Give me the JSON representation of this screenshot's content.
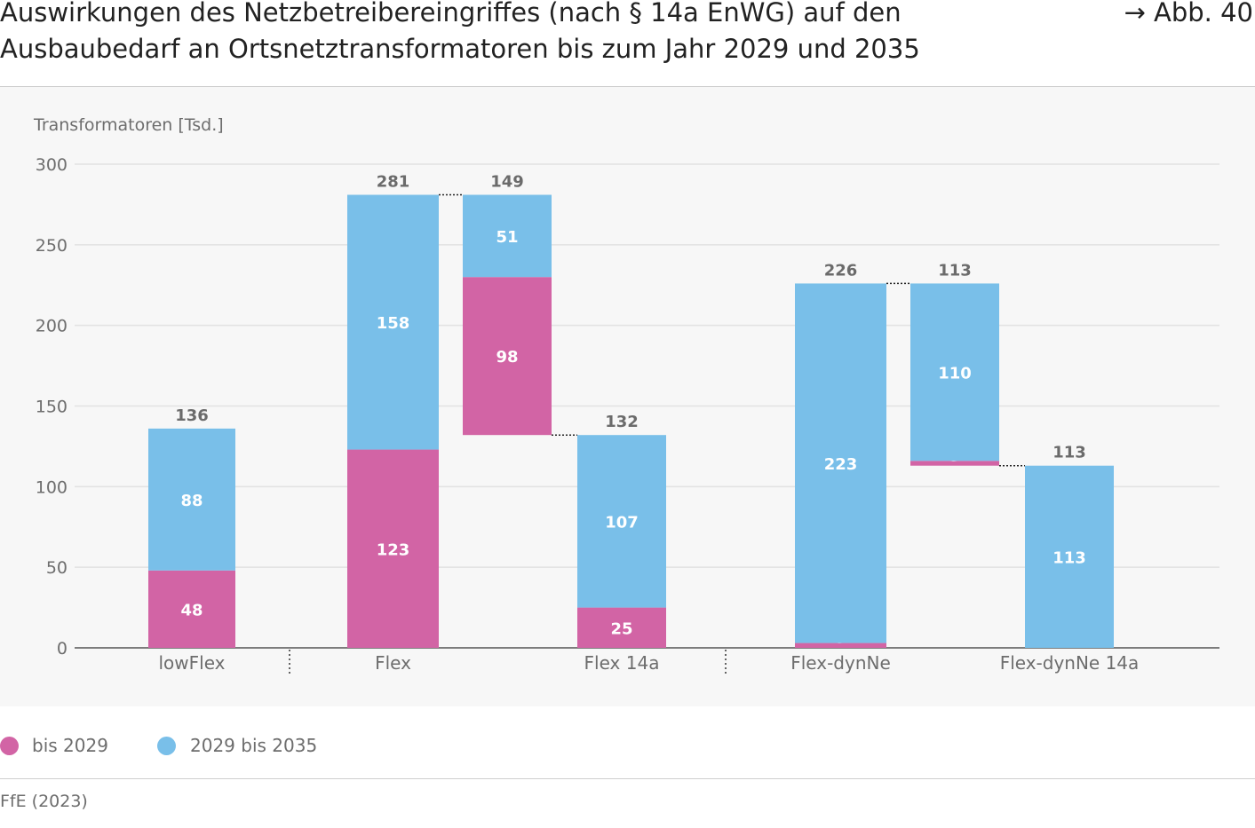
{
  "title": {
    "line1": "Auswirkungen des Netzbetreibereingriffes (nach § 14a EnWG) auf den",
    "line2": "Ausbaubedarf an Ortsnetztransformatoren bis zum Jahr 2029 und 2035"
  },
  "figure_ref": "→ Abb. 40",
  "legend": {
    "series1": "bis 2029",
    "series2": "2029 bis 2035"
  },
  "source": "FfE (2023)",
  "colors": {
    "series1": "#d264a5",
    "series2": "#79bfe9",
    "grid": "#e2e2e2",
    "axis": "#555555",
    "tick_text": "#6d6d6d",
    "total_text": "#6b6b6b",
    "panel": "#f7f7f7"
  },
  "chart_data": {
    "type": "bar",
    "subtype": "stacked-waterfall",
    "ylabel": "Transformatoren [Tsd.]",
    "ylim": [
      0,
      300
    ],
    "yticks": [
      0,
      50,
      100,
      150,
      200,
      250,
      300
    ],
    "grid": true,
    "legend_position": "bottom-left",
    "series_names": [
      "bis 2029",
      "2029 bis 2035"
    ],
    "categories": [
      "lowFlex",
      "Flex",
      "Flex 14a",
      "Flex-dynNe",
      "Flex-dynNe 14a"
    ],
    "bars": [
      {
        "label": "lowFlex",
        "kind": "total",
        "base": 0,
        "values": [
          48,
          88
        ],
        "value_labels": [
          "48",
          "88"
        ],
        "total_label": "136"
      },
      {
        "label": "Flex",
        "kind": "total",
        "base": 0,
        "values": [
          123,
          158
        ],
        "value_labels": [
          "123",
          "158"
        ],
        "total_label": "281"
      },
      {
        "label": "",
        "kind": "reduction",
        "base": 132,
        "values": [
          98,
          51
        ],
        "value_labels": [
          "98",
          "51"
        ],
        "total_label": "149"
      },
      {
        "label": "Flex 14a",
        "kind": "total",
        "base": 0,
        "values": [
          25,
          107
        ],
        "value_labels": [
          "25",
          "107"
        ],
        "total_label": "132"
      },
      {
        "label": "Flex-dynNe",
        "kind": "total",
        "base": 0,
        "values": [
          3,
          223
        ],
        "value_labels": [
          "3",
          "223"
        ],
        "total_label": "226"
      },
      {
        "label": "",
        "kind": "reduction",
        "base": 113,
        "values": [
          3,
          110
        ],
        "value_labels": [
          "3",
          "110"
        ],
        "total_label": "113"
      },
      {
        "label": "Flex-dynNe 14a",
        "kind": "total",
        "base": 0,
        "values": [
          0,
          113
        ],
        "value_labels": [
          "",
          "113"
        ],
        "total_label": "113"
      }
    ]
  }
}
